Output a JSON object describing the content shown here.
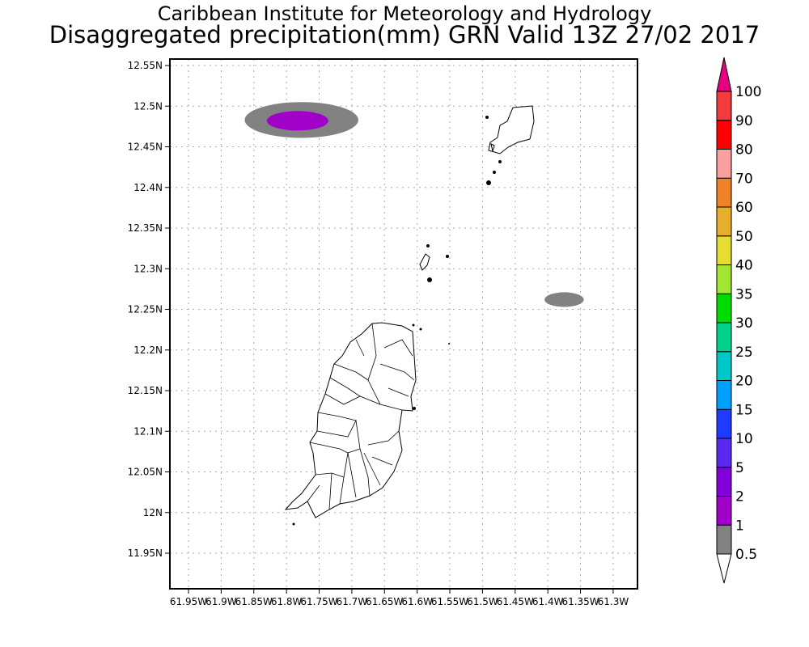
{
  "header": {
    "title": "Caribbean Institute for Meteorology and Hydrology",
    "subtitle": "Disaggregated precipitation(mm) GRN Valid 13Z 27/02 2017"
  },
  "chart_data": {
    "type": "map",
    "title": "Disaggregated precipitation(mm) GRN Valid 13Z 27/02 2017",
    "region": "Grenada and the Grenadines",
    "lon_ticks": [
      61.95,
      61.9,
      61.85,
      61.8,
      61.75,
      61.7,
      61.65,
      61.6,
      61.55,
      61.5,
      61.45,
      61.4,
      61.35,
      61.3
    ],
    "lon_labels": [
      "61.95W",
      "61.9W",
      "61.85W",
      "61.8W",
      "61.75W",
      "61.7W",
      "61.65W",
      "61.6W",
      "61.55W",
      "61.5W",
      "61.45W",
      "61.4W",
      "61.35W",
      "61.3W"
    ],
    "lat_ticks": [
      12.55,
      12.5,
      12.45,
      12.4,
      12.35,
      12.3,
      12.25,
      12.2,
      12.15,
      12.1,
      12.05,
      12.0,
      11.95
    ],
    "lat_labels": [
      "12.55N",
      "12.5N",
      "12.45N",
      "12.4N",
      "12.35N",
      "12.3N",
      "12.25N",
      "12.2N",
      "12.15N",
      "12.1N",
      "12.05N",
      "12N",
      "11.95N"
    ],
    "grid": true,
    "colorbar": {
      "levels": [
        "0.5",
        "1",
        "2",
        "5",
        "10",
        "15",
        "20",
        "25",
        "30",
        "35",
        "40",
        "50",
        "60",
        "70",
        "80",
        "90",
        "100"
      ],
      "colors": [
        "#828282",
        "#a000c8",
        "#8200dc",
        "#5a28f0",
        "#1e3cff",
        "#00a0ff",
        "#00c8c8",
        "#00d28c",
        "#00dc00",
        "#a0e632",
        "#e6dc32",
        "#e6af2d",
        "#f08228",
        "#faa0a0",
        "#ff0000",
        "#f03c3c"
      ],
      "over_color": "#e6007f",
      "under_color": "#ffffff"
    },
    "precip_areas": [
      {
        "lon": 61.777,
        "lat": 12.483,
        "rlon": 0.087,
        "rlat": 0.022,
        "range": "0.5-1",
        "color": "#828282"
      },
      {
        "lon": 61.783,
        "lat": 12.482,
        "rlon": 0.047,
        "rlat": 0.012,
        "range": "1-2",
        "color": "#a000c8"
      },
      {
        "lon": 61.375,
        "lat": 12.262,
        "rlon": 0.03,
        "rlat": 0.009,
        "range": "0.5-1",
        "color": "#828282"
      }
    ]
  }
}
